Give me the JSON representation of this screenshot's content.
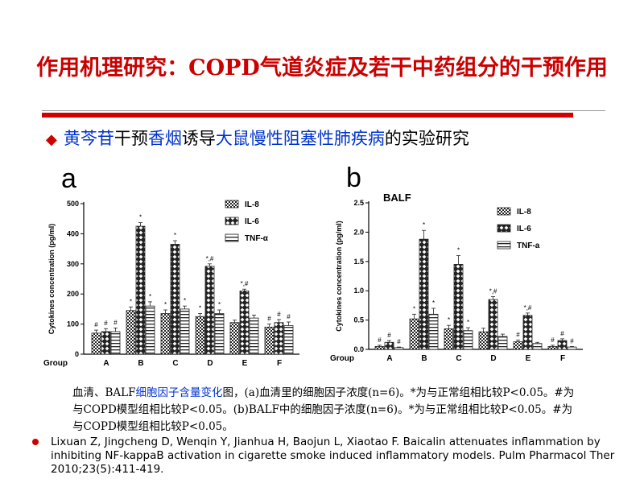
{
  "slide": {
    "title": "作用机理研究：COPD气道炎症及若干中药组分的干预作用",
    "subtitle": {
      "bullet_icon": "diamond-icon",
      "parts": [
        {
          "text": "黄芩苷",
          "highlight": true
        },
        {
          "text": "干预",
          "highlight": false
        },
        {
          "text": "香烟",
          "highlight": true
        },
        {
          "text": "诱导",
          "highlight": false
        },
        {
          "text": "大鼠慢性阻塞性肺疾病",
          "highlight": true
        },
        {
          "text": "的实验研究",
          "highlight": false
        }
      ]
    },
    "caption": {
      "pre": "血清、BALF",
      "highlight": "细胞因子含量变化",
      "post": "图，(a)血清里的细胞因子浓度(n=6)。*为与正常组相比较P<0.05。#为与COPD模型组相比较P<0.05。(b)BALF中的细胞因子浓度(n=6)。*为与正常组相比较P<0.05。#为与COPD模型组相比较P<0.05。"
    },
    "reference": "Lixuan Z, Jingcheng D, Wenqin Y, Jianhua H, Baojun L, Xiaotao F. Baicalin attenuates inflammation by inhibiting NF-kappaB activation in cigarette smoke induced inflammatory models. Pulm Pharmacol Ther 2010;23(5):411-419."
  },
  "colors": {
    "title": "#cc0000",
    "accent_blue": "#0033cc",
    "bar_stroke": "#222222"
  },
  "chart_data": [
    {
      "type": "bar",
      "panel_label": "a",
      "title": "",
      "xlabel": "Group",
      "ylabel": "Cytokines concentration (pg/ml)",
      "ylim": [
        0,
        500
      ],
      "yticks": [
        "0",
        "100",
        "200",
        "300",
        "400",
        "500"
      ],
      "categories": [
        "A",
        "B",
        "C",
        "D",
        "E",
        "F"
      ],
      "legend_position": "top-right",
      "series": [
        {
          "name": "IL-8",
          "pattern": "checker",
          "values": [
            70,
            145,
            135,
            125,
            105,
            90
          ],
          "errors": [
            10,
            12,
            12,
            10,
            8,
            10
          ],
          "marks": [
            "#",
            "*",
            "*",
            "*",
            "",
            "#"
          ]
        },
        {
          "name": "IL-6",
          "pattern": "diamond",
          "values": [
            75,
            425,
            365,
            292,
            210,
            105
          ],
          "errors": [
            10,
            12,
            12,
            8,
            6,
            10
          ],
          "marks": [
            "#",
            "*",
            "*",
            "*,#",
            "*,#",
            "#"
          ]
        },
        {
          "name": "TNF-α",
          "pattern": "hstripe",
          "values": [
            75,
            160,
            150,
            135,
            120,
            95
          ],
          "errors": [
            12,
            14,
            10,
            12,
            10,
            12
          ],
          "marks": [
            "#",
            "*",
            "*",
            "*",
            "",
            "#"
          ]
        }
      ]
    },
    {
      "type": "bar",
      "panel_label": "b",
      "title": "BALF",
      "xlabel": "Group",
      "ylabel": "Cytokines concentration (pg/ml)",
      "ylim": [
        0,
        2.5
      ],
      "yticks": [
        "0.0",
        "0.5",
        "1.0",
        "1.5",
        "2.0",
        "2.5"
      ],
      "categories": [
        "A",
        "B",
        "C",
        "D",
        "E",
        "F"
      ],
      "legend_position": "top-right",
      "series": [
        {
          "name": "IL-8",
          "pattern": "checker",
          "values": [
            0.05,
            0.52,
            0.35,
            0.3,
            0.13,
            0.05
          ],
          "errors": [
            0.02,
            0.08,
            0.06,
            0.06,
            0.03,
            0.02
          ],
          "marks": [
            "#",
            "*",
            "*",
            "",
            "#",
            "#"
          ]
        },
        {
          "name": "IL-6",
          "pattern": "diamond",
          "values": [
            0.12,
            1.88,
            1.45,
            0.85,
            0.58,
            0.15
          ],
          "errors": [
            0.03,
            0.15,
            0.15,
            0.05,
            0.04,
            0.03
          ],
          "marks": [
            "#",
            "*",
            "*",
            "*,#",
            "*,#",
            "#"
          ]
        },
        {
          "name": "TNF-a",
          "pattern": "hstripe",
          "values": [
            0.03,
            0.6,
            0.32,
            0.22,
            0.1,
            0.04
          ],
          "errors": [
            0.01,
            0.1,
            0.05,
            0.04,
            0.02,
            0.01
          ],
          "marks": [
            "#",
            "*",
            "*",
            "",
            "",
            "#"
          ]
        }
      ]
    }
  ]
}
